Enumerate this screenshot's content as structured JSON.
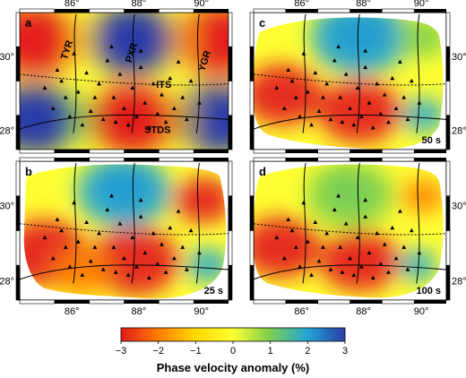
{
  "panels": [
    {
      "letter": "a",
      "period": "",
      "pattern": "checkerboard",
      "labels": [
        "TYR",
        "PXR",
        "YGR",
        "ITS",
        "STDS"
      ]
    },
    {
      "letter": "b",
      "period": "25 s",
      "pattern": "model",
      "labels": []
    },
    {
      "letter": "c",
      "period": "50 s",
      "pattern": "model",
      "labels": []
    },
    {
      "letter": "d",
      "period": "100 s",
      "pattern": "model",
      "labels": []
    }
  ],
  "axes": {
    "lon_ticks": [
      "86°",
      "88°",
      "90°"
    ],
    "lat_ticks": [
      "30°",
      "28°"
    ]
  },
  "colorbar": {
    "ticks": [
      "−3",
      "−2",
      "−1",
      "0",
      "1",
      "2",
      "3"
    ],
    "title": "Phase velocity anomaly (%)",
    "colors": [
      "#e31a1c",
      "#ff7f00",
      "#ffd700",
      "#ffff33",
      "#7fd04c",
      "#22a6d6",
      "#2b3ba8"
    ]
  }
}
